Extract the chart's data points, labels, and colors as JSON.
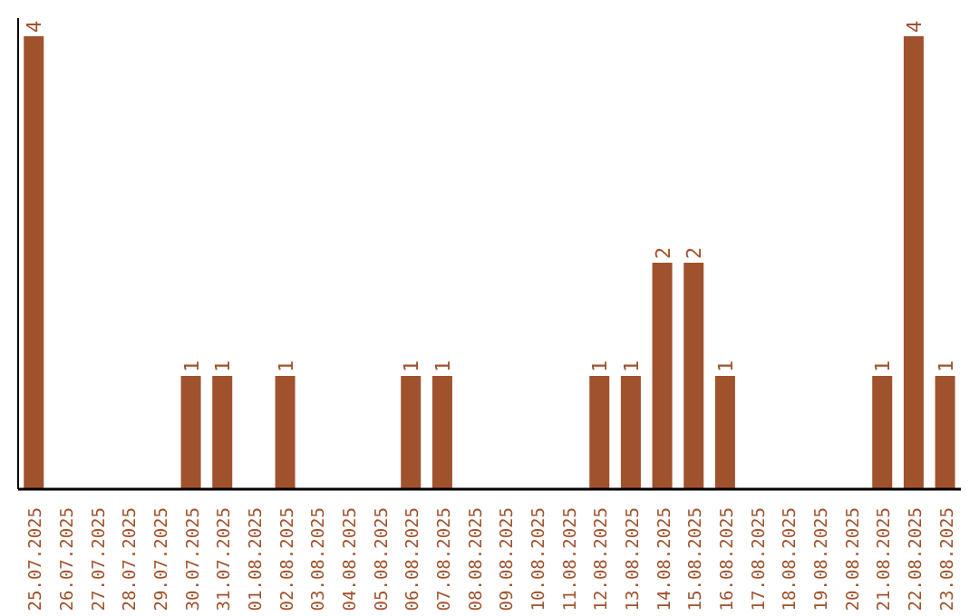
{
  "chart_data": {
    "type": "bar",
    "categories": [
      "25.07.2025",
      "26.07.2025",
      "27.07.2025",
      "28.07.2025",
      "29.07.2025",
      "30.07.2025",
      "31.07.2025",
      "01.08.2025",
      "02.08.2025",
      "03.08.2025",
      "04.08.2025",
      "05.08.2025",
      "06.08.2025",
      "07.08.2025",
      "08.08.2025",
      "09.08.2025",
      "10.08.2025",
      "11.08.2025",
      "12.08.2025",
      "13.08.2025",
      "14.08.2025",
      "15.08.2025",
      "16.08.2025",
      "17.08.2025",
      "18.08.2025",
      "19.08.2025",
      "20.08.2025",
      "21.08.2025",
      "22.08.2025",
      "23.08.2025"
    ],
    "values": [
      4,
      0,
      0,
      0,
      0,
      1,
      1,
      0,
      1,
      0,
      0,
      0,
      1,
      1,
      0,
      0,
      0,
      0,
      1,
      1,
      2,
      2,
      1,
      0,
      0,
      0,
      0,
      1,
      4,
      1
    ],
    "value_labels": [
      "4",
      null,
      null,
      null,
      null,
      "1",
      "1",
      null,
      "1",
      null,
      null,
      null,
      "1",
      "1",
      null,
      null,
      null,
      null,
      "1",
      "1",
      "2",
      "2",
      "1",
      null,
      null,
      null,
      null,
      "1",
      "4",
      "1"
    ],
    "color": "#a0522d",
    "grid": false,
    "legend": false,
    "tick_labels": "x"
  }
}
